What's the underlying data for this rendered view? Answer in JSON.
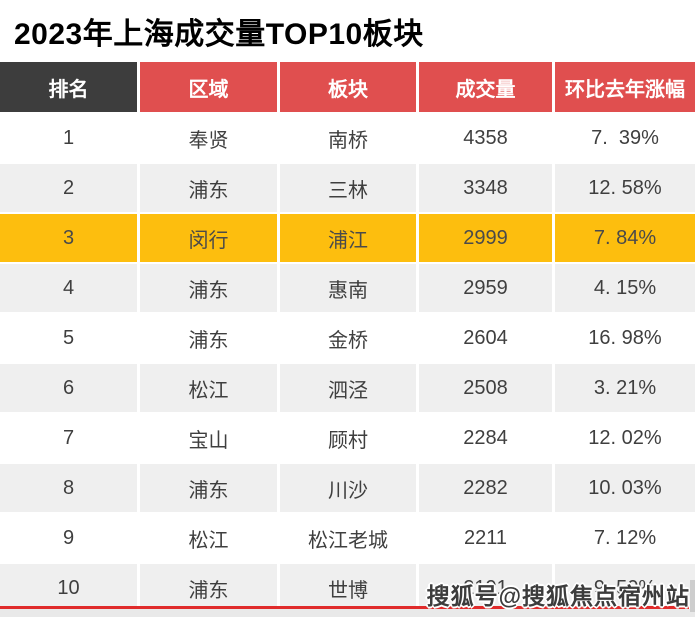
{
  "title": "2023年上海成交量TOP10板块",
  "watermark": "搜狐号@搜狐焦点宿州站",
  "colors": {
    "header_dark": "#3d3d3d",
    "header_red": "#e04f4f",
    "row_gray": "#efefef",
    "highlight_yellow": "#fdbe0e",
    "divider_red": "#e02b2b",
    "text": "#3f3f3f"
  },
  "table": {
    "headers": [
      "排名",
      "区域",
      "板块",
      "成交量",
      "环比去年涨幅"
    ],
    "highlighted_rank": "3",
    "rows": [
      {
        "rank": "1",
        "district": "奉贤",
        "area": "南桥",
        "volume": "4358",
        "yoy": "7.  39%"
      },
      {
        "rank": "2",
        "district": "浦东",
        "area": "三林",
        "volume": "3348",
        "yoy": "12. 58%"
      },
      {
        "rank": "3",
        "district": "闵行",
        "area": "浦江",
        "volume": "2999",
        "yoy": "7. 84%"
      },
      {
        "rank": "4",
        "district": "浦东",
        "area": "惠南",
        "volume": "2959",
        "yoy": "4. 15%"
      },
      {
        "rank": "5",
        "district": "浦东",
        "area": "金桥",
        "volume": "2604",
        "yoy": "16. 98%"
      },
      {
        "rank": "6",
        "district": "松江",
        "area": "泗泾",
        "volume": "2508",
        "yoy": "3. 21%"
      },
      {
        "rank": "7",
        "district": "宝山",
        "area": "顾村",
        "volume": "2284",
        "yoy": "12. 02%"
      },
      {
        "rank": "8",
        "district": "浦东",
        "area": "川沙",
        "volume": "2282",
        "yoy": "10. 03%"
      },
      {
        "rank": "9",
        "district": "松江",
        "area": "松江老城",
        "volume": "2211",
        "yoy": "7. 12%"
      },
      {
        "rank": "10",
        "district": "浦东",
        "area": "世博",
        "volume": "2191",
        "yoy": "9. 50%"
      }
    ]
  }
}
